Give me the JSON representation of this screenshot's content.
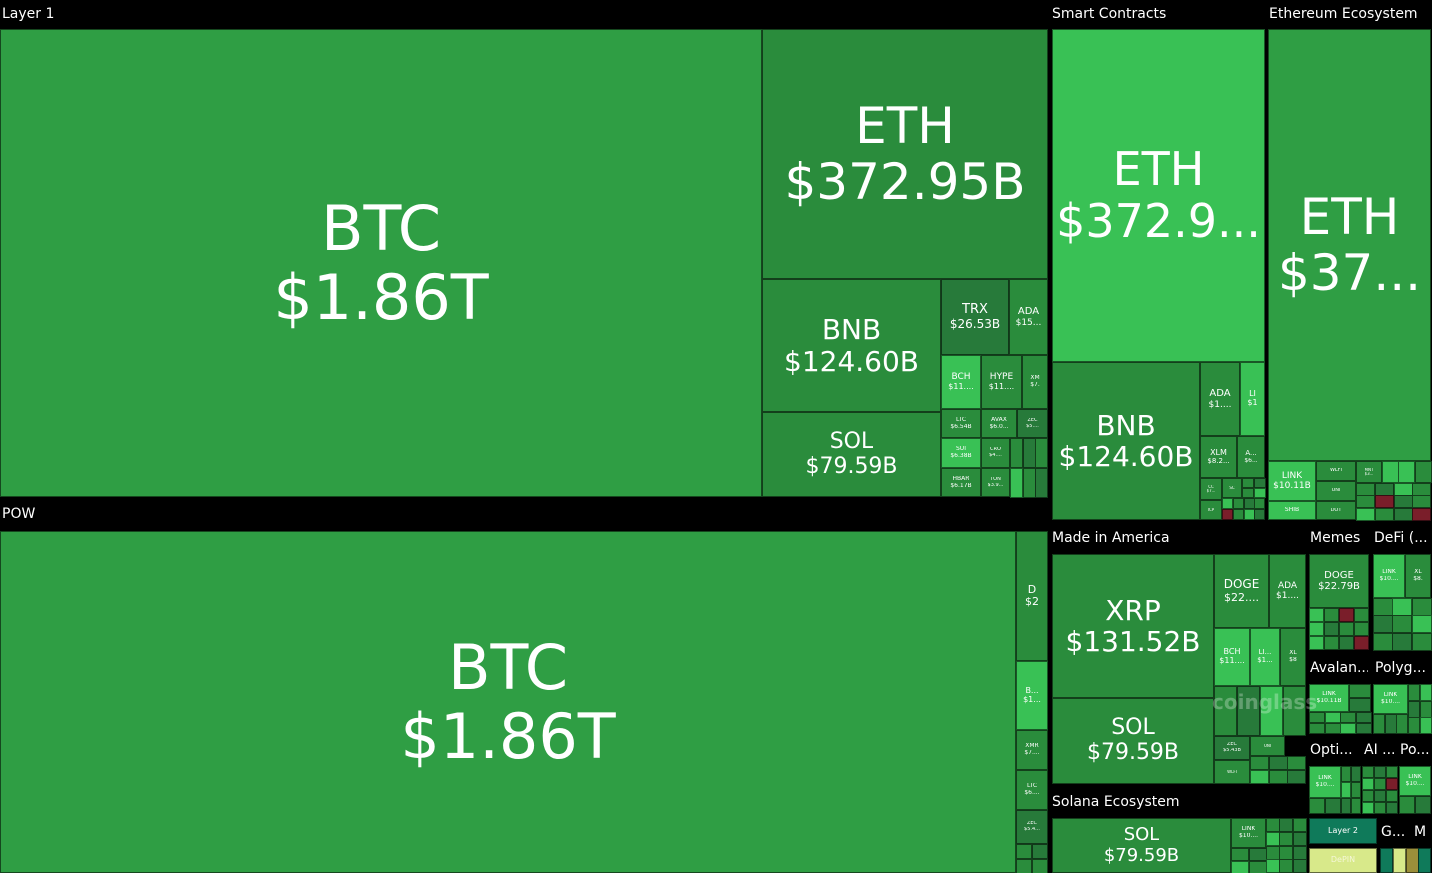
{
  "colors": {
    "base": "#2f9e44",
    "mid": "#2a8c3c",
    "bright": "#39c155",
    "dark": "#277a3a",
    "red": "#7a1e2a",
    "teal": "#0f7a5a",
    "yellowish": "#d8e98a",
    "olive": "#9b8f3a"
  },
  "watermark": "coinglass",
  "chart_data": {
    "type": "treemap",
    "metric": "market cap",
    "sectors": [
      {
        "name": "Layer 1",
        "tiles": [
          {
            "label": "BTC",
            "value": "$1.86T"
          },
          {
            "label": "ETH",
            "value": "$372.95B"
          },
          {
            "label": "BNB",
            "value": "$124.60B"
          },
          {
            "label": "SOL",
            "value": "$79.59B"
          },
          {
            "label": "TRX",
            "value": "$26.53B"
          },
          {
            "label": "ADA",
            "value": "$15..."
          },
          {
            "label": "BCH",
            "value": "$11...."
          },
          {
            "label": "HYPE",
            "value": "$11...."
          },
          {
            "label": "XM",
            "value": "$7."
          },
          {
            "label": "LTC",
            "value": "$6.54B"
          },
          {
            "label": "AVAX",
            "value": "$6.0..."
          },
          {
            "label": "ZEC",
            "value": "$5...."
          },
          {
            "label": "SUI",
            "value": "$6.38B"
          },
          {
            "label": "CRO",
            "value": "$4...."
          },
          {
            "label": "HBAR",
            "value": "$6.17B"
          },
          {
            "label": "TON",
            "value": "$3.9..."
          }
        ]
      },
      {
        "name": "POW",
        "tiles": [
          {
            "label": "BTC",
            "value": "$1.86T"
          },
          {
            "label": "D",
            "value": "$2"
          },
          {
            "label": "B...",
            "value": "$1..."
          },
          {
            "label": "XMR",
            "value": "$7...."
          },
          {
            "label": "LTC",
            "value": "$6...."
          },
          {
            "label": "ZEC",
            "value": "$5.4..."
          }
        ]
      },
      {
        "name": "Smart Contracts",
        "tiles": [
          {
            "label": "ETH",
            "value": "$372.9..."
          },
          {
            "label": "BNB",
            "value": "$124.60B"
          },
          {
            "label": "ADA",
            "value": "$1...."
          },
          {
            "label": "LI",
            "value": "$1"
          },
          {
            "label": "XLM",
            "value": "$8.2..."
          },
          {
            "label": "A...",
            "value": "$6..."
          },
          {
            "label": "CC",
            "value": "$7..."
          },
          {
            "label": "ICP",
            "value": ""
          },
          {
            "label": "SC",
            "value": ""
          }
        ]
      },
      {
        "name": "Ethereum Ecosystem",
        "tiles": [
          {
            "label": "ETH",
            "value": "$37..."
          },
          {
            "label": "LINK",
            "value": "$10.11B"
          },
          {
            "label": "WLFI",
            "value": ""
          },
          {
            "label": "SHIB",
            "value": ""
          },
          {
            "label": "UNI",
            "value": ""
          },
          {
            "label": "DOT",
            "value": ""
          },
          {
            "label": "MNT",
            "value": "$3..."
          }
        ]
      },
      {
        "name": "Made in America",
        "tiles": [
          {
            "label": "XRP",
            "value": "$131.52B"
          },
          {
            "label": "SOL",
            "value": "$79.59B"
          },
          {
            "label": "DOGE",
            "value": "$22...."
          },
          {
            "label": "ADA",
            "value": "$1...."
          },
          {
            "label": "BCH",
            "value": "$11...."
          },
          {
            "label": "LI...",
            "value": "$1..."
          },
          {
            "label": "XL",
            "value": "$8"
          },
          {
            "label": "ZEC",
            "value": "$5.43B"
          },
          {
            "label": "UNI",
            "value": ""
          },
          {
            "label": "WLFI",
            "value": ""
          }
        ]
      },
      {
        "name": "Solana Ecosystem",
        "tiles": [
          {
            "label": "SOL",
            "value": "$79.59B"
          },
          {
            "label": "LINK",
            "value": "$10...."
          }
        ]
      },
      {
        "name": "Memes",
        "tiles": [
          {
            "label": "DOGE",
            "value": "$22.79B"
          }
        ]
      },
      {
        "name": "DeFi (...",
        "tiles": [
          {
            "label": "LINK",
            "value": "$10...."
          },
          {
            "label": "XL",
            "value": "$8."
          }
        ]
      },
      {
        "name": "Avalan...",
        "tiles": [
          {
            "label": "LINK",
            "value": "$10.11B"
          }
        ]
      },
      {
        "name": "Polyg...",
        "tiles": [
          {
            "label": "LINK",
            "value": "$10...."
          }
        ]
      },
      {
        "name": "Opti...",
        "tiles": [
          {
            "label": "LINK",
            "value": "$10...."
          }
        ]
      },
      {
        "name": "AI ...",
        "tiles": []
      },
      {
        "name": "Po...",
        "tiles": [
          {
            "label": "LINK",
            "value": "$10...."
          }
        ]
      },
      {
        "name": "Layer 2",
        "tiles": []
      },
      {
        "name": "G...",
        "tiles": []
      },
      {
        "name": "M",
        "tiles": []
      },
      {
        "name": "DePIN",
        "tiles": []
      }
    ]
  }
}
